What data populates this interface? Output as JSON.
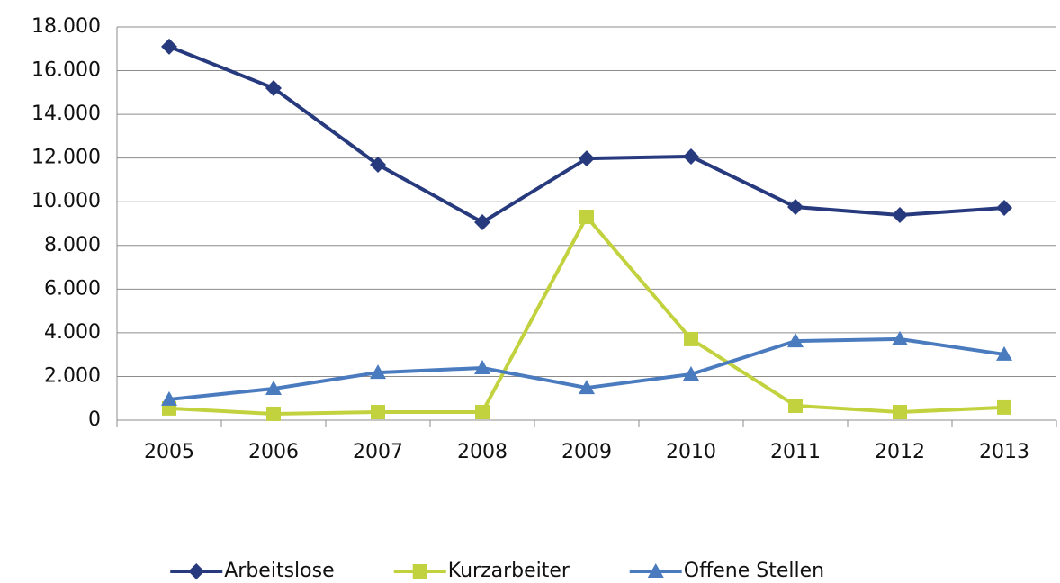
{
  "chart_data": {
    "type": "line",
    "categories": [
      "2005",
      "2006",
      "2007",
      "2008",
      "2009",
      "2010",
      "2011",
      "2012",
      "2013"
    ],
    "series": [
      {
        "name": "Arbeitslose",
        "color": "#283a7e",
        "marker": "diamond",
        "values": [
          17100,
          15200,
          11700,
          9060,
          11980,
          12070,
          9760,
          9390,
          9720
        ]
      },
      {
        "name": "Kurzarbeiter",
        "color": "#c2d23e",
        "marker": "square",
        "values": [
          540,
          290,
          370,
          370,
          9310,
          3710,
          660,
          370,
          580
        ]
      },
      {
        "name": "Offene Stellen",
        "color": "#4a7bbf",
        "marker": "triangle",
        "values": [
          950,
          1440,
          2180,
          2390,
          1480,
          2100,
          3620,
          3710,
          3010
        ]
      }
    ],
    "ylim": [
      0,
      18000
    ],
    "yticks": [
      0,
      {
        "value": 2000,
        "label": "2.000"
      },
      {
        "value": 4000,
        "label": "4.000"
      },
      {
        "value": 6000,
        "label": "6.000"
      },
      {
        "value": 8000,
        "label": "8.000"
      },
      {
        "value": 10000,
        "label": "10.000"
      },
      {
        "value": 12000,
        "label": "12.000"
      },
      {
        "value": 14000,
        "label": "14.000"
      },
      {
        "value": 16000,
        "label": "16.000"
      },
      {
        "value": 18000,
        "label": "18.000"
      }
    ],
    "grid": true,
    "legend": "bottom"
  }
}
